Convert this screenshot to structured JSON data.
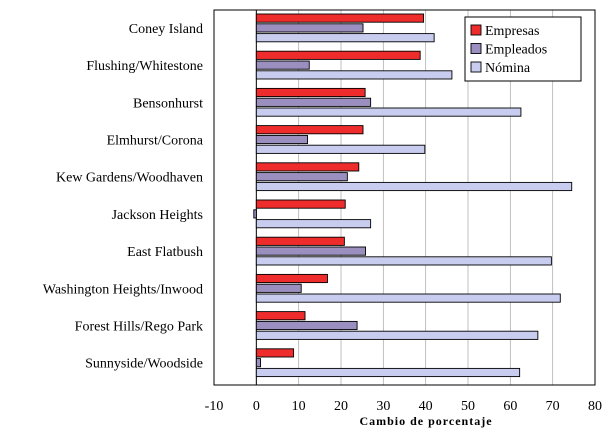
{
  "chart_data": {
    "type": "bar",
    "orientation": "horizontal",
    "title": "",
    "xlabel": "Cambio de porcentaje",
    "ylabel": "",
    "xlim": [
      -10,
      80
    ],
    "xticks": [
      -10,
      0,
      10,
      20,
      30,
      40,
      50,
      60,
      70,
      80
    ],
    "grid": "vertical",
    "legend_position": "top-right",
    "categories": [
      "Coney Island",
      "Flushing/Whitestone",
      "Bensonhurst",
      "Elmhurst/Corona",
      "Kew Gardens/Woodhaven",
      "Jackson Heights",
      "East Flatbush",
      "Washington Heights/Inwood",
      "Forest Hills/Rego Park",
      "Sunnyside/Woodside"
    ],
    "series": [
      {
        "name": "Empresas",
        "color": "#ee2c2c",
        "values": [
          39.5,
          38.7,
          25.7,
          25.2,
          24.2,
          21,
          20.8,
          16.8,
          11.5,
          8.8
        ]
      },
      {
        "name": "Empleados",
        "color": "#9b8fc0",
        "values": [
          25.2,
          12.5,
          27,
          12.1,
          21.5,
          -0.6,
          25.8,
          10.6,
          23.8,
          1
        ]
      },
      {
        "name": "Nómina",
        "color": "#c8cdef",
        "values": [
          42,
          46.2,
          62.5,
          39.8,
          74.5,
          27,
          69.7,
          71.8,
          66.5,
          62.2
        ]
      }
    ]
  }
}
